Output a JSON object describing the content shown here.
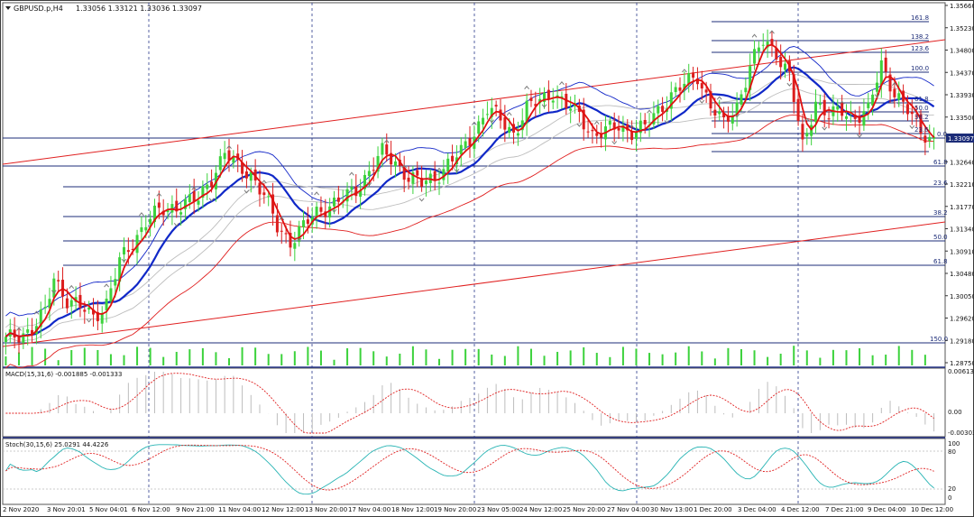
{
  "chart_header": {
    "symbol": "GBPUSD.p,H4",
    "ohlc": "1.33056 1.33121 1.33036 1.33097",
    "current_price": "1.33097"
  },
  "price_axis": [
    "1.35660",
    "1.35230",
    "1.34800",
    "1.34370",
    "1.33930",
    "1.33500",
    "1.33097",
    "1.32640",
    "1.32210",
    "1.31770",
    "1.31340",
    "1.30910",
    "1.30480",
    "1.30050",
    "1.29620",
    "1.29180",
    "1.28750"
  ],
  "fibo_upper_levels": [
    "161.8",
    "138.2",
    "123.6",
    "100.0",
    "61.8",
    "50.0",
    "38.2",
    "23.6",
    "0.0"
  ],
  "fibo_lower_levels": [
    "61.8",
    "23.6",
    "38.2",
    "50.0",
    "61.8",
    "150.0"
  ],
  "macd": {
    "label": "MACD(15,31,6) -0.001885 -0.001333",
    "axis": [
      "0.006138",
      "0.00",
      "-0.00303"
    ]
  },
  "stoch": {
    "label": "Stoch(30,15,6) 25.0291 44.4226",
    "axis": [
      "100",
      "80",
      "20",
      "0"
    ]
  },
  "time_axis": [
    "2 Nov 2020",
    "3 Nov 20:01",
    "5 Nov 04:01",
    "6 Nov 12:00",
    "9 Nov 21:00",
    "11 Nov 04:00",
    "12 Nov 12:00",
    "13 Nov 20:00",
    "17 Nov 04:00",
    "18 Nov 12:00",
    "19 Nov 20:00",
    "23 Nov 05:00",
    "24 Nov 12:00",
    "25 Nov 20:00",
    "27 Nov 04:00",
    "30 Nov 13:00",
    "1 Dec 20:00",
    "3 Dec 04:00",
    "4 Dec 12:00",
    "7 Dec 21:00",
    "9 Dec 04:00",
    "10 Dec 12:00"
  ],
  "colors": {
    "bull_candle": "#3cd23c",
    "bear_candle": "#dc1e1e",
    "ma_fast": "#e01010",
    "ma_mid": "#1028c8",
    "band": "#1428c8",
    "trend": "#e02020",
    "level": "#1c2c78",
    "macd_hist": "#bdbdbd",
    "macd_signal": "#e02020",
    "stoch_main": "#28b4b4",
    "stoch_signal": "#e02020",
    "separator": "#2c3a8c"
  },
  "chart_data": {
    "type": "candlestick",
    "symbol": "GBPUSD",
    "timeframe": "H4",
    "ylim": [
      1.2875,
      1.3566
    ],
    "price_path": [
      [
        0,
        1.2922
      ],
      [
        3,
        1.2935
      ],
      [
        6,
        1.2945
      ],
      [
        9,
        1.2975
      ],
      [
        11,
        1.3045
      ],
      [
        14,
        1.3002
      ],
      [
        17,
        1.2985
      ],
      [
        20,
        1.297
      ],
      [
        23,
        1.2995
      ],
      [
        26,
        1.3072
      ],
      [
        29,
        1.3112
      ],
      [
        32,
        1.3152
      ],
      [
        35,
        1.3168
      ],
      [
        38,
        1.318
      ],
      [
        41,
        1.3187
      ],
      [
        44,
        1.3192
      ],
      [
        47,
        1.3238
      ],
      [
        50,
        1.3282
      ],
      [
        53,
        1.3255
      ],
      [
        56,
        1.3245
      ],
      [
        59,
        1.32
      ],
      [
        62,
        1.314
      ],
      [
        65,
        1.3115
      ],
      [
        68,
        1.314
      ],
      [
        71,
        1.3168
      ],
      [
        74,
        1.3185
      ],
      [
        77,
        1.3192
      ],
      [
        80,
        1.3212
      ],
      [
        83,
        1.325
      ],
      [
        86,
        1.3282
      ],
      [
        89,
        1.3265
      ],
      [
        92,
        1.3238
      ],
      [
        95,
        1.3222
      ],
      [
        98,
        1.3237
      ],
      [
        101,
        1.3262
      ],
      [
        104,
        1.3282
      ],
      [
        107,
        1.3325
      ],
      [
        110,
        1.3368
      ],
      [
        113,
        1.3345
      ],
      [
        116,
        1.3322
      ],
      [
        119,
        1.3368
      ],
      [
        122,
        1.3382
      ],
      [
        125,
        1.3402
      ],
      [
        128,
        1.3372
      ],
      [
        131,
        1.3356
      ],
      [
        134,
        1.332
      ],
      [
        137,
        1.3322
      ],
      [
        140,
        1.3335
      ],
      [
        143,
        1.3325
      ],
      [
        146,
        1.333
      ],
      [
        149,
        1.3365
      ],
      [
        152,
        1.3395
      ],
      [
        155,
        1.3412
      ],
      [
        158,
        1.3432
      ],
      [
        161,
        1.3375
      ],
      [
        164,
        1.3335
      ],
      [
        167,
        1.3375
      ],
      [
        170,
        1.345
      ],
      [
        173,
        1.3495
      ],
      [
        176,
        1.3478
      ],
      [
        179,
        1.3432
      ],
      [
        182,
        1.3292
      ],
      [
        185,
        1.3385
      ],
      [
        188,
        1.3352
      ],
      [
        191,
        1.3362
      ],
      [
        194,
        1.3355
      ],
      [
        197,
        1.3362
      ],
      [
        200,
        1.3452
      ],
      [
        203,
        1.3402
      ],
      [
        206,
        1.3362
      ],
      [
        209,
        1.3325
      ],
      [
        212,
        1.331
      ]
    ]
  }
}
